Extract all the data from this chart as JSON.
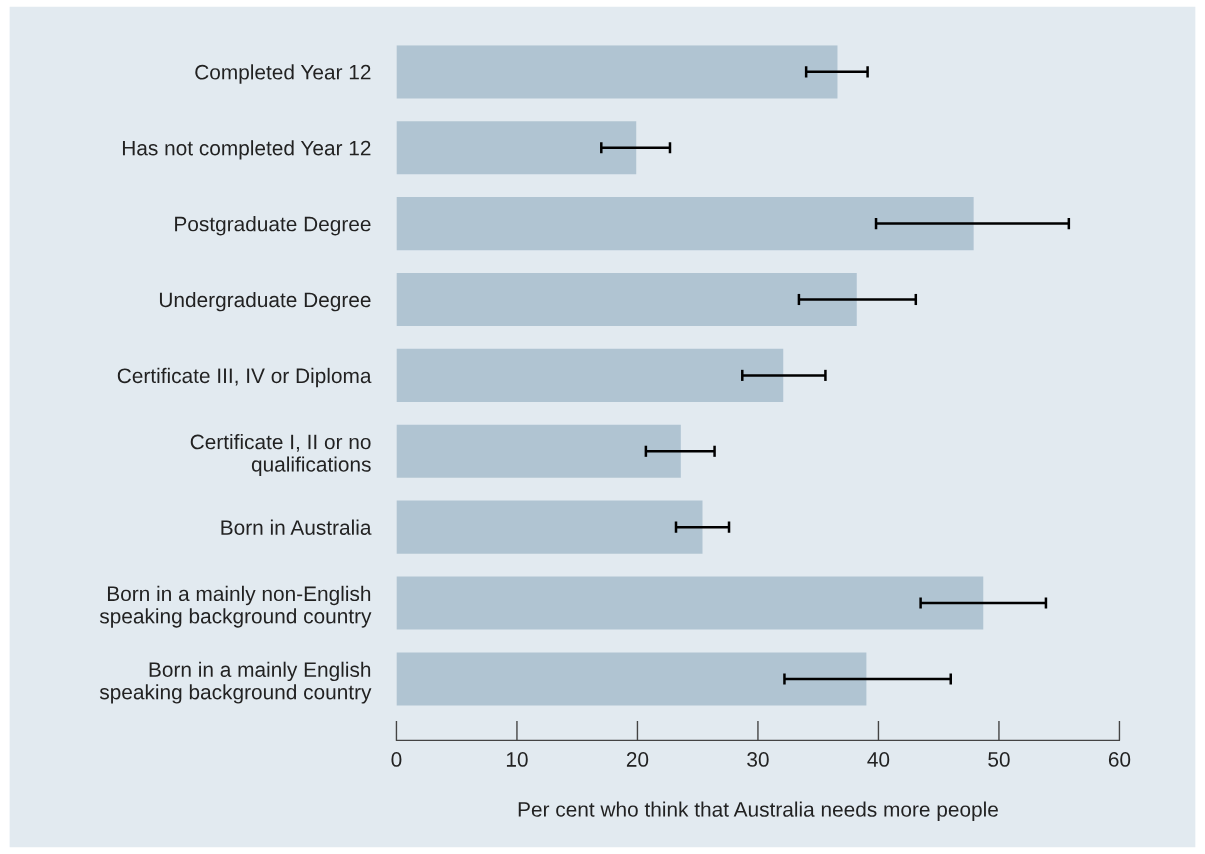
{
  "chart_data": {
    "type": "bar",
    "orientation": "horizontal",
    "categories": [
      "Completed Year 12",
      "Has not completed Year 12",
      "Postgraduate Degree",
      "Undergraduate Degree",
      "Certificate III, IV or Diploma",
      "Certificate I, II or no\nqualifications",
      "Born in Australia",
      "Born in a mainly non-English\nspeaking background country",
      "Born in a mainly English\nspeaking background country"
    ],
    "values": [
      36.6,
      19.9,
      47.9,
      38.2,
      32.1,
      23.6,
      25.4,
      48.7,
      39.0
    ],
    "errors": [
      [
        34.0,
        39.1
      ],
      [
        17.0,
        22.7
      ],
      [
        39.8,
        55.8
      ],
      [
        33.4,
        43.1
      ],
      [
        28.7,
        35.6
      ],
      [
        20.7,
        26.4
      ],
      [
        23.2,
        27.6
      ],
      [
        43.5,
        53.9
      ],
      [
        32.2,
        46.0
      ]
    ],
    "color": "#b0c4d2",
    "xlabel": "Per cent who think that Australia needs more people",
    "xlim": [
      0,
      60
    ],
    "xticks": [
      0,
      10,
      20,
      30,
      40,
      50,
      60
    ],
    "grid": false,
    "legend": false
  }
}
